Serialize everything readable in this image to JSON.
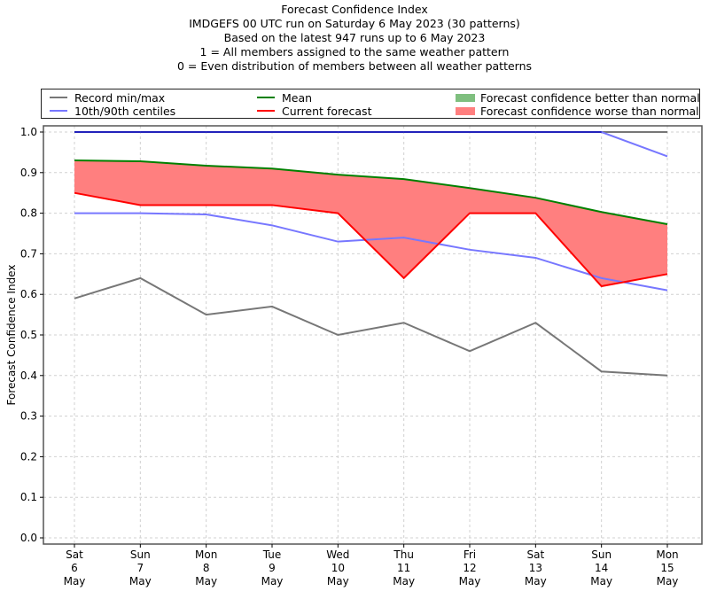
{
  "chart_data": {
    "type": "line",
    "title": "Forecast Confidence Index",
    "subtitles": [
      "IMDGEFS 00 UTC run on Saturday 6 May 2023 (30 patterns)",
      "Based on the latest 947 runs up to 6 May 2023",
      "1 = All members assigned to the same weather pattern",
      "0 = Even distribution of members between all weather patterns"
    ],
    "xlabel": "",
    "ylabel": "Forecast Confidence Index",
    "ylim": [
      0.0,
      1.0
    ],
    "yticks": [
      "0.0",
      "0.1",
      "0.2",
      "0.3",
      "0.4",
      "0.5",
      "0.6",
      "0.7",
      "0.8",
      "0.9",
      "1.0"
    ],
    "ytick_values": [
      0.0,
      0.1,
      0.2,
      0.3,
      0.4,
      0.5,
      0.6,
      0.7,
      0.8,
      0.9,
      1.0
    ],
    "categories": [
      [
        "Sat",
        "6",
        "May"
      ],
      [
        "Sun",
        "7",
        "May"
      ],
      [
        "Mon",
        "8",
        "May"
      ],
      [
        "Tue",
        "9",
        "May"
      ],
      [
        "Wed",
        "10",
        "May"
      ],
      [
        "Thu",
        "11",
        "May"
      ],
      [
        "Fri",
        "12",
        "May"
      ],
      [
        "Sat",
        "13",
        "May"
      ],
      [
        "Sun",
        "14",
        "May"
      ],
      [
        "Mon",
        "15",
        "May"
      ]
    ],
    "grid": true,
    "legend_position": "top (above plot, 3 columns)",
    "series": [
      {
        "name": "Record max",
        "legend": "Record min/max",
        "color": "#777777",
        "values": [
          1.0,
          1.0,
          1.0,
          1.0,
          1.0,
          1.0,
          1.0,
          1.0,
          1.0,
          1.0
        ]
      },
      {
        "name": "Record min",
        "legend": "Record min/max",
        "color": "#777777",
        "values": [
          0.59,
          0.64,
          0.55,
          0.57,
          0.5,
          0.53,
          0.46,
          0.53,
          0.41,
          0.4
        ]
      },
      {
        "name": "90th centile",
        "legend": "10th/90th centiles",
        "color": "#7777ff",
        "values": [
          1.0,
          1.0,
          1.0,
          1.0,
          1.0,
          1.0,
          1.0,
          1.0,
          1.0,
          0.94
        ]
      },
      {
        "name": "10th centile",
        "legend": "10th/90th centiles",
        "color": "#7777ff",
        "values": [
          0.8,
          0.8,
          0.797,
          0.77,
          0.73,
          0.74,
          0.71,
          0.69,
          0.64,
          0.61
        ]
      },
      {
        "name": "Mean",
        "legend": "Mean",
        "color": "#008000",
        "values": [
          0.93,
          0.928,
          0.917,
          0.91,
          0.895,
          0.884,
          0.862,
          0.838,
          0.803,
          0.773
        ]
      },
      {
        "name": "Current forecast",
        "legend": "Current forecast",
        "color": "#ff0000",
        "values": [
          0.85,
          0.82,
          0.82,
          0.82,
          0.8,
          0.64,
          0.8,
          0.8,
          0.62,
          0.65
        ]
      }
    ],
    "fills": [
      {
        "name": "Forecast confidence better than normal",
        "color": "#7fbf7f",
        "between": [
          "Current forecast",
          "Mean"
        ],
        "where": "current > mean"
      },
      {
        "name": "Forecast confidence worse than normal",
        "color": "#ff7f7f",
        "between": [
          "Current forecast",
          "Mean"
        ],
        "where": "current < mean"
      }
    ],
    "blue_overlay_color": "#2222bb"
  },
  "legend": {
    "record": "Record min/max",
    "centiles": "10th/90th centiles",
    "mean": "Mean",
    "current": "Current forecast",
    "better": "Forecast confidence better than normal",
    "worse": "Forecast confidence worse than normal"
  }
}
